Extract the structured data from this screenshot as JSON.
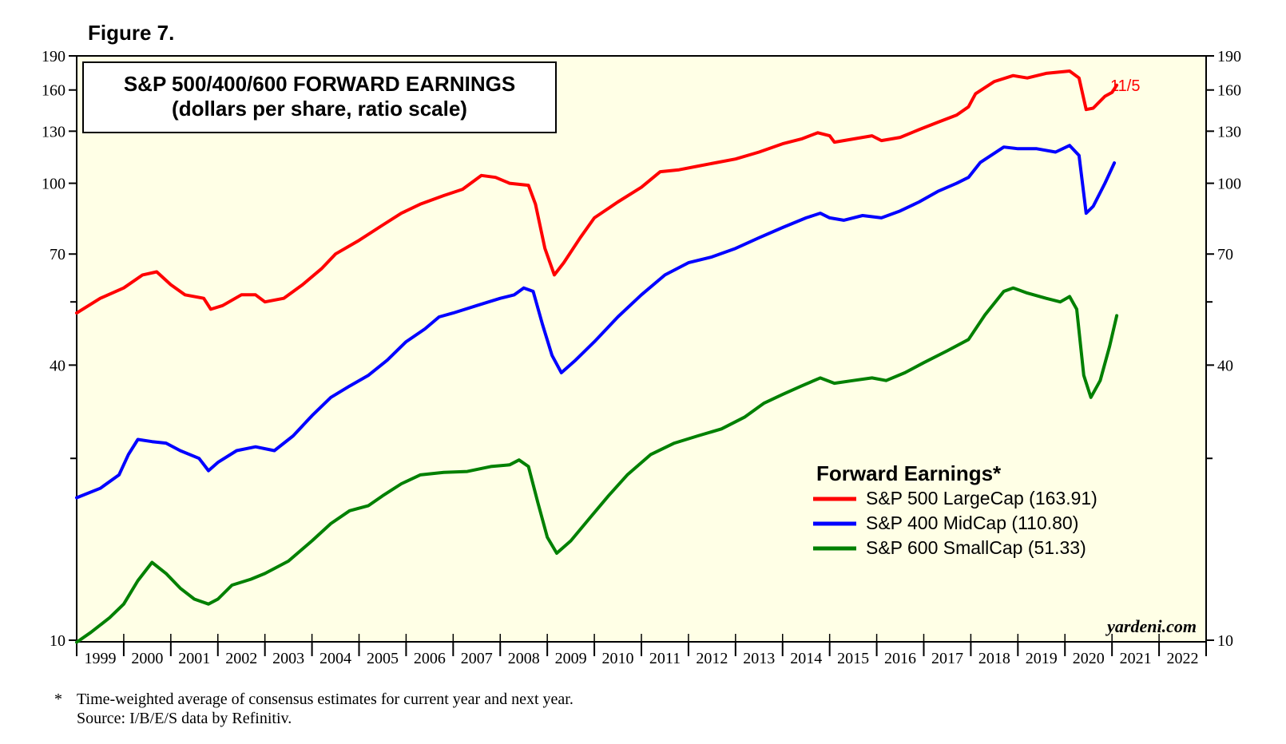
{
  "figure_label": "Figure 7.",
  "footnote": {
    "marker": "*",
    "line1": "Time-weighted average of consensus estimates for current year and next year.",
    "line2": "Source: I/B/E/S data by Refinitiv."
  },
  "chart_data": {
    "type": "line",
    "title": "S&P 500/400/600 FORWARD EARNINGS",
    "subtitle": "(dollars per share, ratio scale)",
    "y_scale": "log",
    "ylim": [
      10,
      190
    ],
    "y_ticks": [
      10,
      40,
      70,
      100,
      130,
      160,
      190
    ],
    "y_minor_ticks": [
      25,
      55
    ],
    "x_range": [
      1999,
      2023
    ],
    "x_tick_labels": [
      "1999",
      "2000",
      "2001",
      "2002",
      "2003",
      "2004",
      "2005",
      "2006",
      "2007",
      "2008",
      "2009",
      "2010",
      "2011",
      "2012",
      "2013",
      "2014",
      "2015",
      "2016",
      "2017",
      "2018",
      "2019",
      "2020",
      "2021",
      "2022"
    ],
    "legend_title": "Forward Earnings*",
    "legend_position": "bottom-right",
    "annotation": "11/5",
    "watermark": "yardeni.com",
    "background_color": "#ffffe6",
    "series": [
      {
        "name": "S&P 500 LargeCap (163.91)",
        "color": "#ff0000",
        "points": [
          [
            1999.0,
            52
          ],
          [
            1999.5,
            56
          ],
          [
            2000.0,
            59
          ],
          [
            2000.4,
            63
          ],
          [
            2000.7,
            64
          ],
          [
            2001.0,
            60
          ],
          [
            2001.3,
            57
          ],
          [
            2001.7,
            56
          ],
          [
            2001.85,
            53
          ],
          [
            2002.1,
            54
          ],
          [
            2002.5,
            57
          ],
          [
            2002.8,
            57
          ],
          [
            2003.0,
            55
          ],
          [
            2003.4,
            56
          ],
          [
            2003.8,
            60
          ],
          [
            2004.2,
            65
          ],
          [
            2004.5,
            70
          ],
          [
            2005.0,
            75
          ],
          [
            2005.5,
            81
          ],
          [
            2005.9,
            86
          ],
          [
            2006.3,
            90
          ],
          [
            2006.8,
            94
          ],
          [
            2007.2,
            97
          ],
          [
            2007.6,
            104
          ],
          [
            2007.9,
            103
          ],
          [
            2008.2,
            100
          ],
          [
            2008.6,
            99
          ],
          [
            2008.75,
            90
          ],
          [
            2008.95,
            72
          ],
          [
            2009.15,
            63
          ],
          [
            2009.35,
            67
          ],
          [
            2009.7,
            76
          ],
          [
            2010.0,
            84
          ],
          [
            2010.5,
            91
          ],
          [
            2011.0,
            98
          ],
          [
            2011.4,
            106
          ],
          [
            2011.8,
            107
          ],
          [
            2012.2,
            109
          ],
          [
            2012.6,
            111
          ],
          [
            2013.0,
            113
          ],
          [
            2013.5,
            117
          ],
          [
            2014.0,
            122
          ],
          [
            2014.4,
            125
          ],
          [
            2014.75,
            129
          ],
          [
            2015.0,
            127
          ],
          [
            2015.1,
            123
          ],
          [
            2015.5,
            125
          ],
          [
            2015.9,
            127
          ],
          [
            2016.1,
            124
          ],
          [
            2016.5,
            126
          ],
          [
            2016.9,
            131
          ],
          [
            2017.3,
            136
          ],
          [
            2017.7,
            141
          ],
          [
            2017.95,
            147
          ],
          [
            2018.1,
            157
          ],
          [
            2018.5,
            167
          ],
          [
            2018.9,
            172
          ],
          [
            2019.2,
            170
          ],
          [
            2019.6,
            174
          ],
          [
            2020.1,
            176
          ],
          [
            2020.3,
            170
          ],
          [
            2020.45,
            145
          ],
          [
            2020.6,
            146
          ],
          [
            2020.85,
            155
          ],
          [
            2021.0,
            158
          ],
          [
            2021.1,
            163.91
          ]
        ]
      },
      {
        "name": "S&P 400 MidCap (110.80)",
        "color": "#0000ff",
        "points": [
          [
            1999.0,
            20.5
          ],
          [
            1999.5,
            21.5
          ],
          [
            1999.9,
            23
          ],
          [
            2000.1,
            25.5
          ],
          [
            2000.3,
            27.5
          ],
          [
            2000.6,
            27.2
          ],
          [
            2000.9,
            27
          ],
          [
            2001.2,
            26
          ],
          [
            2001.6,
            25
          ],
          [
            2001.8,
            23.5
          ],
          [
            2002.0,
            24.5
          ],
          [
            2002.4,
            26
          ],
          [
            2002.8,
            26.5
          ],
          [
            2003.2,
            26
          ],
          [
            2003.6,
            28
          ],
          [
            2004.0,
            31
          ],
          [
            2004.4,
            34
          ],
          [
            2004.8,
            36
          ],
          [
            2005.2,
            38
          ],
          [
            2005.6,
            41
          ],
          [
            2006.0,
            45
          ],
          [
            2006.4,
            48
          ],
          [
            2006.7,
            51
          ],
          [
            2007.0,
            52
          ],
          [
            2007.5,
            54
          ],
          [
            2008.0,
            56
          ],
          [
            2008.3,
            57
          ],
          [
            2008.5,
            59
          ],
          [
            2008.7,
            58
          ],
          [
            2008.9,
            49
          ],
          [
            2009.1,
            42
          ],
          [
            2009.3,
            38.5
          ],
          [
            2009.6,
            41
          ],
          [
            2010.0,
            45
          ],
          [
            2010.5,
            51
          ],
          [
            2011.0,
            57
          ],
          [
            2011.5,
            63
          ],
          [
            2012.0,
            67
          ],
          [
            2012.5,
            69
          ],
          [
            2013.0,
            72
          ],
          [
            2013.5,
            76
          ],
          [
            2014.0,
            80
          ],
          [
            2014.5,
            84
          ],
          [
            2014.8,
            86
          ],
          [
            2015.0,
            84
          ],
          [
            2015.3,
            83
          ],
          [
            2015.7,
            85
          ],
          [
            2016.1,
            84
          ],
          [
            2016.5,
            87
          ],
          [
            2016.9,
            91
          ],
          [
            2017.3,
            96
          ],
          [
            2017.7,
            100
          ],
          [
            2017.95,
            103
          ],
          [
            2018.2,
            111
          ],
          [
            2018.7,
            120
          ],
          [
            2019.0,
            119
          ],
          [
            2019.4,
            119
          ],
          [
            2019.8,
            117
          ],
          [
            2020.1,
            121
          ],
          [
            2020.3,
            115
          ],
          [
            2020.45,
            86
          ],
          [
            2020.6,
            89
          ],
          [
            2020.85,
            100
          ],
          [
            2021.05,
            110.8
          ]
        ]
      },
      {
        "name": "S&P 600 SmallCap (51.33)",
        "color": "#008000",
        "points": [
          [
            1999.0,
            9.9
          ],
          [
            1999.3,
            10.4
          ],
          [
            1999.7,
            11.2
          ],
          [
            2000.0,
            12
          ],
          [
            2000.3,
            13.5
          ],
          [
            2000.6,
            14.8
          ],
          [
            2000.9,
            14
          ],
          [
            2001.2,
            13
          ],
          [
            2001.5,
            12.3
          ],
          [
            2001.8,
            12
          ],
          [
            2002.0,
            12.3
          ],
          [
            2002.3,
            13.2
          ],
          [
            2002.7,
            13.6
          ],
          [
            2003.0,
            14
          ],
          [
            2003.5,
            14.9
          ],
          [
            2004.0,
            16.5
          ],
          [
            2004.4,
            18
          ],
          [
            2004.8,
            19.2
          ],
          [
            2005.2,
            19.7
          ],
          [
            2005.5,
            20.7
          ],
          [
            2005.9,
            22
          ],
          [
            2006.3,
            23
          ],
          [
            2006.8,
            23.3
          ],
          [
            2007.3,
            23.4
          ],
          [
            2007.8,
            24
          ],
          [
            2008.2,
            24.2
          ],
          [
            2008.4,
            24.8
          ],
          [
            2008.6,
            24
          ],
          [
            2008.8,
            20
          ],
          [
            2009.0,
            16.8
          ],
          [
            2009.2,
            15.5
          ],
          [
            2009.5,
            16.5
          ],
          [
            2009.9,
            18.5
          ],
          [
            2010.3,
            20.7
          ],
          [
            2010.7,
            23
          ],
          [
            2011.2,
            25.5
          ],
          [
            2011.7,
            27
          ],
          [
            2012.2,
            28
          ],
          [
            2012.7,
            29
          ],
          [
            2013.2,
            30.8
          ],
          [
            2013.6,
            33
          ],
          [
            2014.0,
            34.5
          ],
          [
            2014.4,
            36
          ],
          [
            2014.8,
            37.5
          ],
          [
            2015.1,
            36.5
          ],
          [
            2015.5,
            37
          ],
          [
            2015.9,
            37.5
          ],
          [
            2016.2,
            37
          ],
          [
            2016.6,
            38.5
          ],
          [
            2017.0,
            40.5
          ],
          [
            2017.5,
            43
          ],
          [
            2017.95,
            45.5
          ],
          [
            2018.3,
            51.5
          ],
          [
            2018.7,
            58
          ],
          [
            2018.9,
            59
          ],
          [
            2019.2,
            57.5
          ],
          [
            2019.6,
            56
          ],
          [
            2019.9,
            55
          ],
          [
            2020.1,
            56.5
          ],
          [
            2020.25,
            53
          ],
          [
            2020.4,
            38
          ],
          [
            2020.55,
            34
          ],
          [
            2020.75,
            37
          ],
          [
            2020.95,
            44
          ],
          [
            2021.1,
            51.33
          ]
        ]
      }
    ]
  }
}
